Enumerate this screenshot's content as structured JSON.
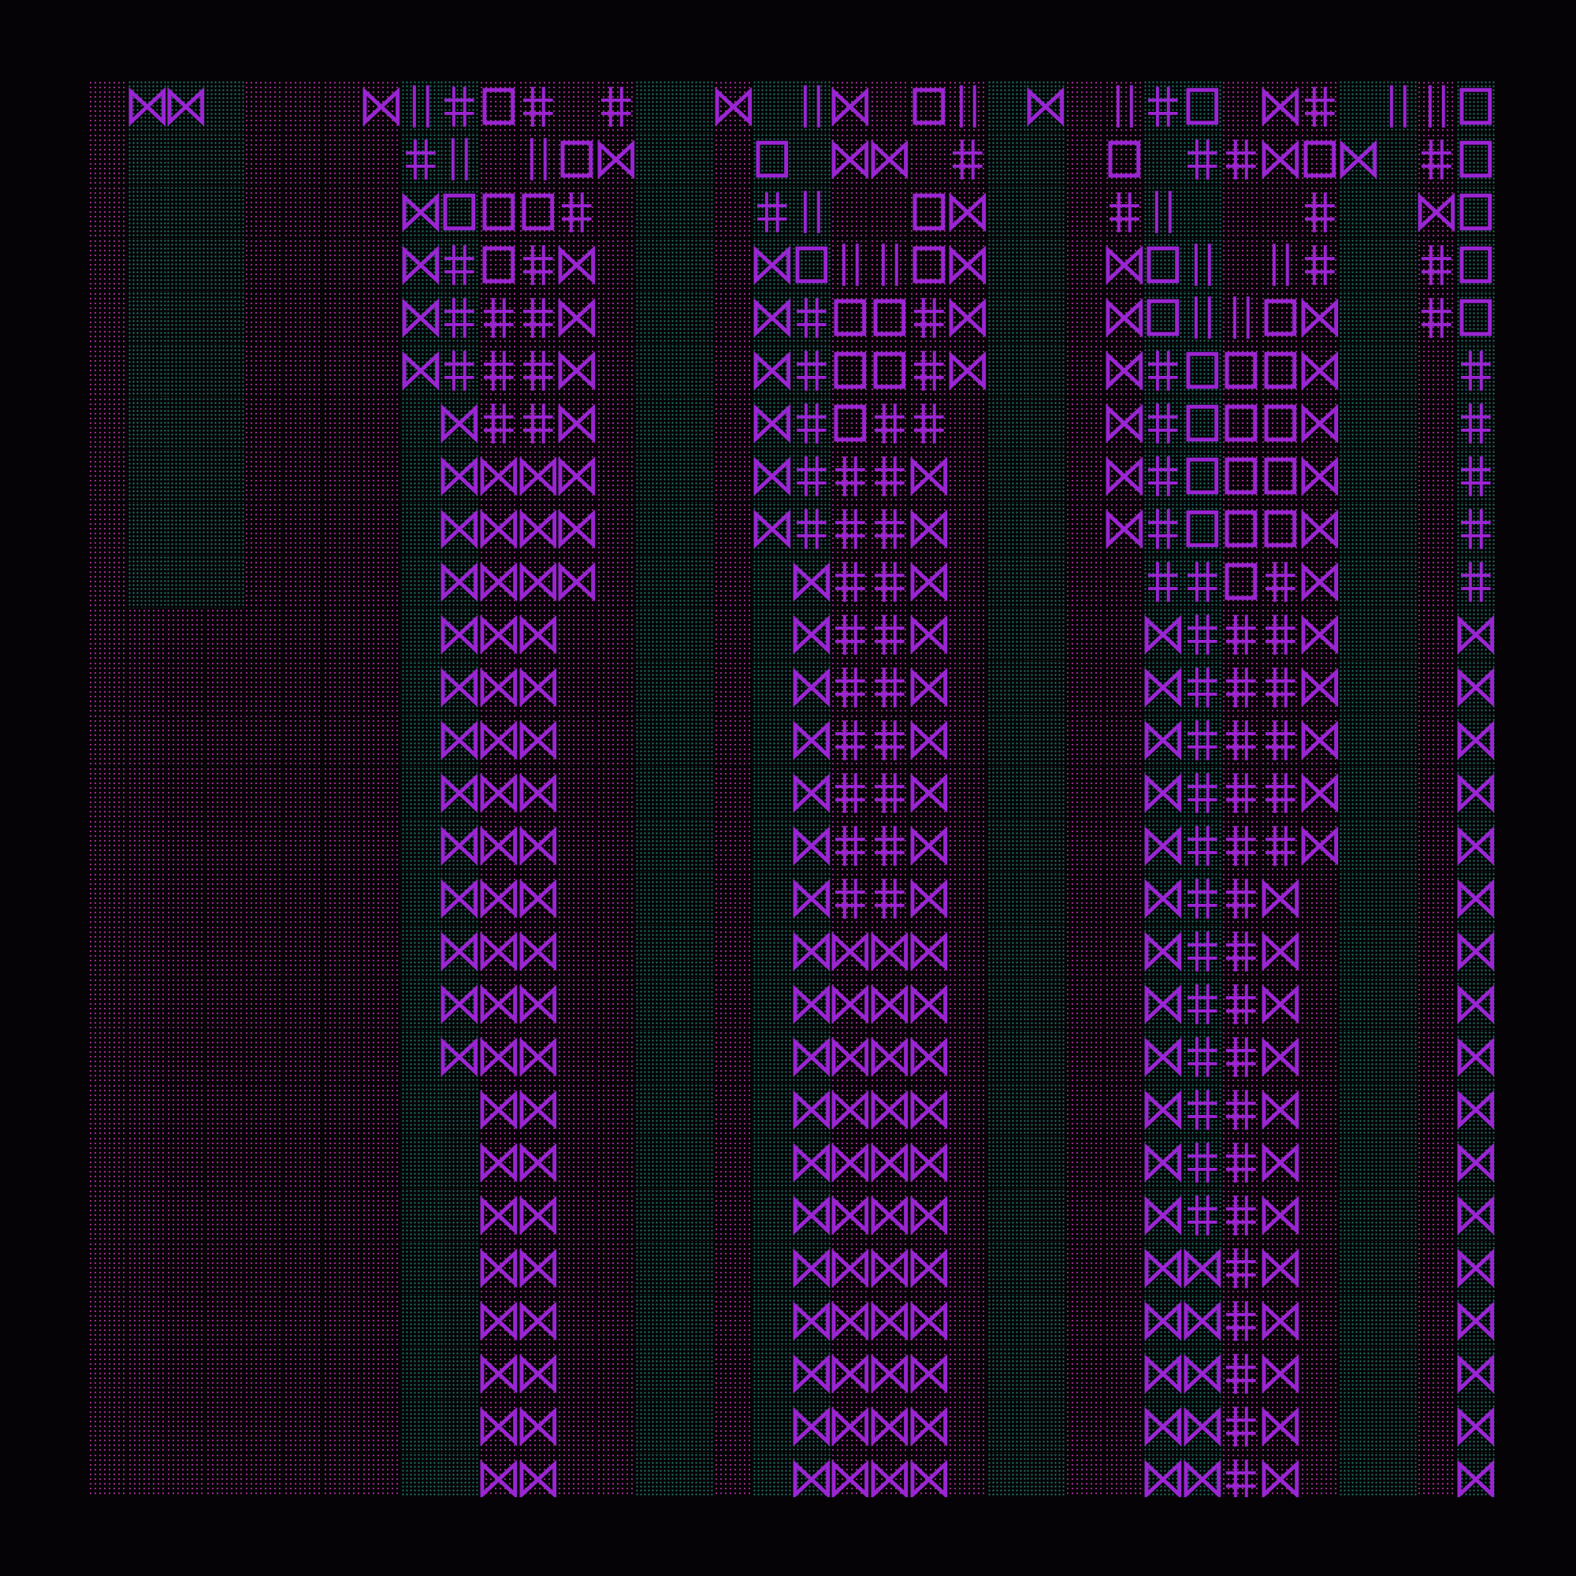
{
  "artwork": {
    "background_color": "#050305",
    "glyph_color": "#9a25d2",
    "pink_dot_color": "#b330a8",
    "teal_dot_color": "#1b6d66",
    "glyphs": {
      "bowtie": "⋈",
      "double_cross": "╬",
      "square": "□",
      "bars": "||",
      "dots": "░"
    }
  }
}
